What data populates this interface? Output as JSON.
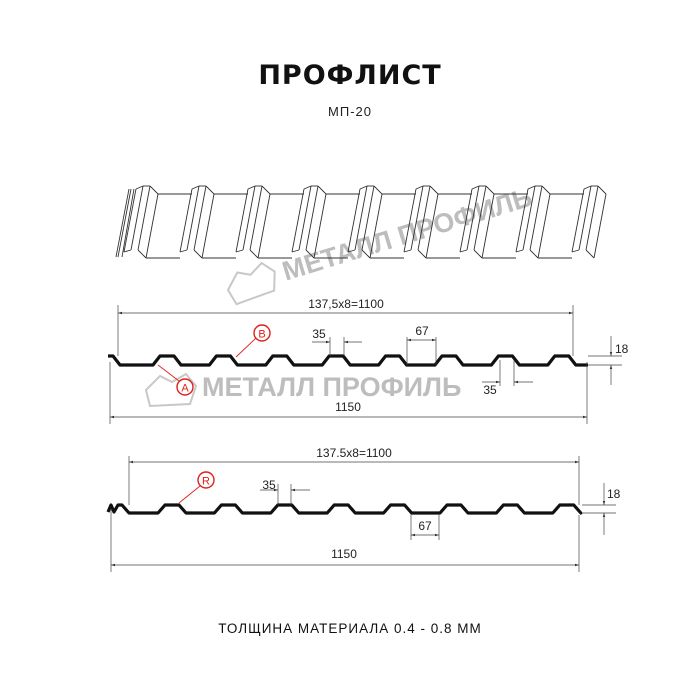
{
  "header": {
    "title": "ПРОФЛИСТ",
    "subtitle": "МП-20"
  },
  "watermark": {
    "text": "МЕТАЛЛ ПРОФИЛЬ",
    "color": "#bdbdbd"
  },
  "profile_1": {
    "pitch_label": "137,5x8=1100",
    "width_label": "1150",
    "rib_top_label": "35",
    "rib_bottom_label": "35",
    "trough_label": "67",
    "height_label": "18",
    "marker_a": "A",
    "marker_b": "B"
  },
  "profile_2": {
    "pitch_label": "137.5x8=1100",
    "width_label": "1150",
    "rib_top_label": "35",
    "trough_label": "67",
    "height_label": "18",
    "marker_r": "R"
  },
  "footer": {
    "thickness": "ТОЛЩИНА МАТЕРИАЛА 0.4 - 0.8 ММ"
  },
  "colors": {
    "profile": "#111111",
    "marker": "#e0201a",
    "dimension": "#444444"
  }
}
